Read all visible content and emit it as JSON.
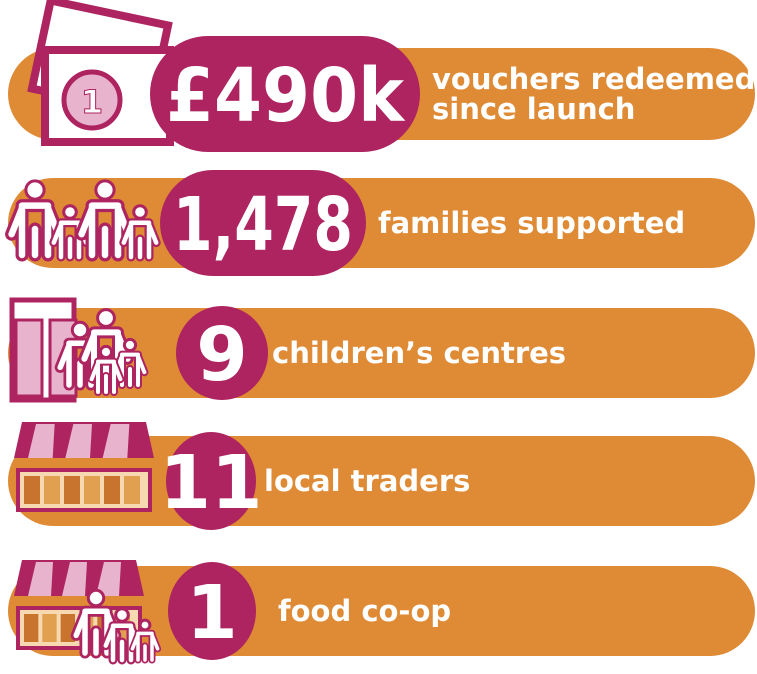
{
  "items": [
    {
      "value": "£490k",
      "label": [
        "vouchers redeemed",
        "since launch"
      ],
      "icon_text": "1"
    },
    {
      "value": "1,478",
      "label": [
        "families supported"
      ]
    },
    {
      "value": "9",
      "label": [
        "children’s centres"
      ]
    },
    {
      "value": "11",
      "label": [
        "local traders"
      ]
    },
    {
      "value": "1",
      "label": [
        "food co-op"
      ]
    }
  ]
}
